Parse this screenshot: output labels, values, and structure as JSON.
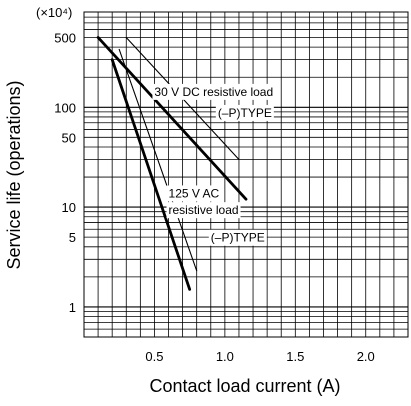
{
  "chart_data": {
    "type": "line",
    "title": "",
    "xlabel": "Contact load current (A)",
    "ylabel": "Service life (operations)",
    "y_scale": "log",
    "y_multiplier_label": "(×10⁴)",
    "xlim": [
      0,
      2.3
    ],
    "ylim": [
      0.5,
      900
    ],
    "x_ticks": [
      0.5,
      1.0,
      1.5,
      2.0
    ],
    "x_tick_labels": [
      "0.5",
      "1.0",
      "1.5",
      "2.0"
    ],
    "y_ticks": [
      1,
      5,
      10,
      50,
      100,
      500
    ],
    "y_tick_labels": [
      "1",
      "5",
      "10",
      "50",
      "100",
      "500"
    ],
    "grid": true,
    "series": [
      {
        "name": "",
        "style": "thick",
        "x": [
          0.1,
          1.15
        ],
        "y": [
          500,
          12
        ]
      },
      {
        "name": "",
        "style": "thin",
        "x": [
          0.3,
          1.1
        ],
        "y": [
          500,
          30
        ]
      },
      {
        "name": "",
        "style": "thick",
        "x": [
          0.2,
          0.75
        ],
        "y": [
          300,
          1.5
        ]
      },
      {
        "name": "",
        "style": "thin",
        "x": [
          0.25,
          0.8
        ],
        "y": [
          380,
          2.3
        ]
      }
    ],
    "annotations": [
      {
        "text": "30 V DC resistive load",
        "x": 0.5,
        "y": 130
      },
      {
        "text": "(–P)TYPE",
        "x": 0.95,
        "y": 80
      },
      {
        "text": "125 V AC",
        "x": 0.6,
        "y": 12.5
      },
      {
        "text": "resistive load",
        "x": 0.6,
        "y": 8.5
      },
      {
        "text": "(–P)TYPE",
        "x": 0.9,
        "y": 4.5
      }
    ]
  }
}
